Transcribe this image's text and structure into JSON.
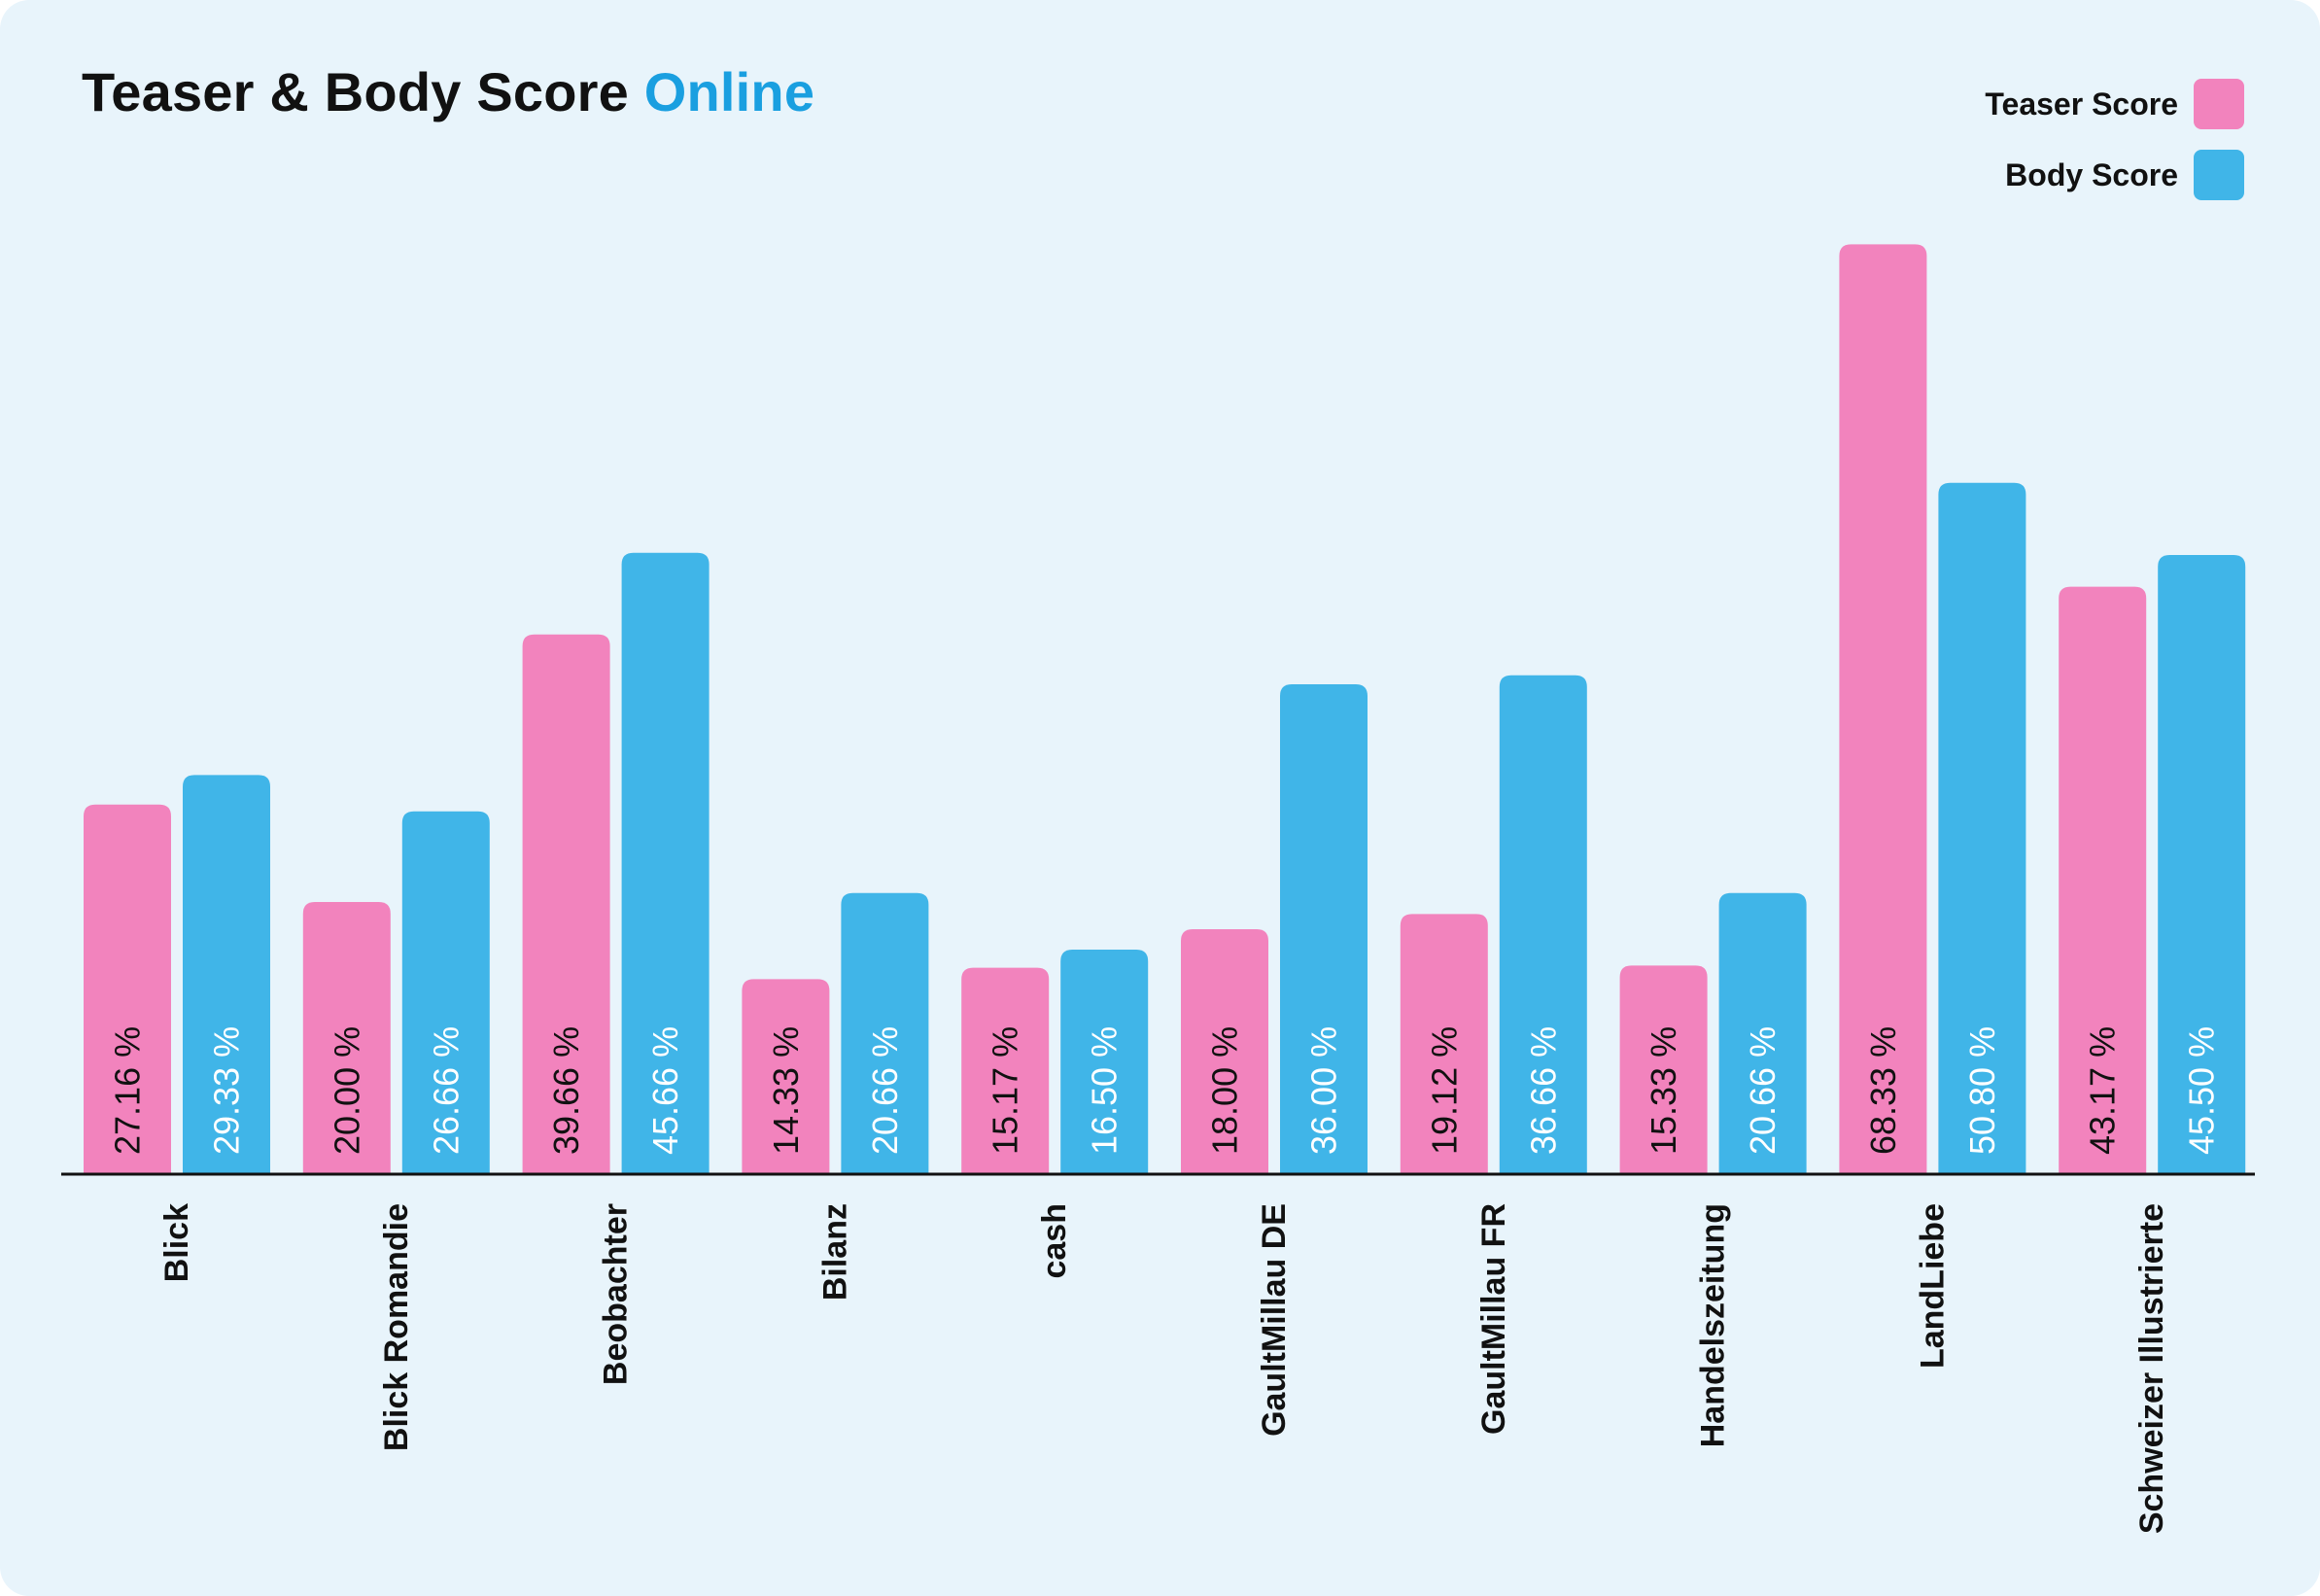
{
  "title": {
    "main": "Teaser & Body Score",
    "accent": "Online"
  },
  "legend": [
    {
      "label": "Teaser Score",
      "color": "#f283bd"
    },
    {
      "label": "Body Score",
      "color": "#40b5e8"
    }
  ],
  "chart_data": {
    "type": "bar",
    "title": "Teaser & Body Score Online",
    "categories": [
      "Blick",
      "Blick Romandie",
      "Beobachter",
      "Bilanz",
      "cash",
      "GaultMillau DE",
      "GaultMillau FR",
      "Handelszeitung",
      "LandLiebe",
      "Schweizer Illustrierte"
    ],
    "series": [
      {
        "name": "Teaser Score",
        "color": "#f283bd",
        "label_color": "#111111",
        "values": [
          27.16,
          20.0,
          39.66,
          14.33,
          15.17,
          18.0,
          19.12,
          15.33,
          68.33,
          43.17
        ],
        "labels": [
          "27.16 %",
          "20.00 %",
          "39.66 %",
          "14.33 %",
          "15.17 %",
          "18.00 %",
          "19.12 %",
          "15.33 %",
          "68.33 %",
          "43.17 %"
        ]
      },
      {
        "name": "Body Score",
        "color": "#40b5e8",
        "label_color": "#ffffff",
        "values": [
          29.33,
          26.66,
          45.66,
          20.66,
          16.5,
          36.0,
          36.66,
          20.66,
          50.8,
          45.5
        ],
        "labels": [
          "29.33 %",
          "26.66 %",
          "45.66 %",
          "20.66 %",
          "16.50 %",
          "36.00 %",
          "36.66 %",
          "20.66 %",
          "50.80 %",
          "45.50 %"
        ]
      }
    ],
    "ylim": [
      0,
      70
    ],
    "grid": false,
    "legend_position": "top-right"
  }
}
